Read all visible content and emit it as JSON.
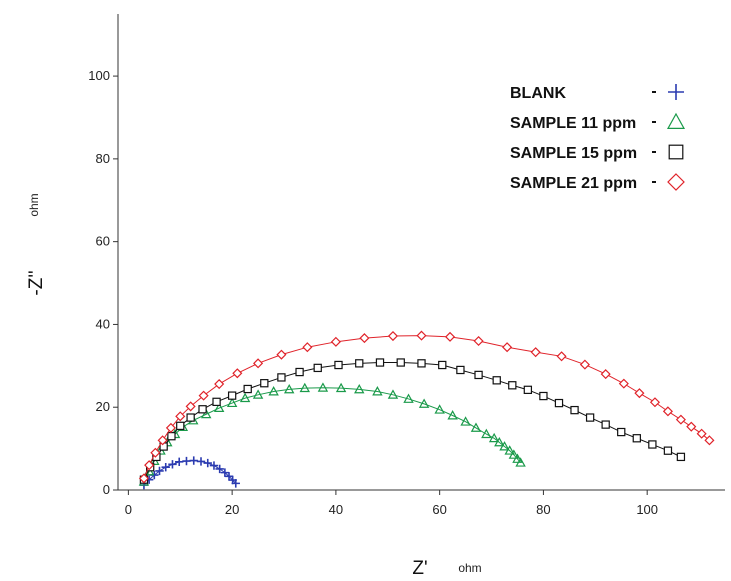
{
  "chart_data": {
    "type": "scatter",
    "title": "",
    "xlabel": "Z'",
    "xunit": "ohm",
    "ylabel": "-Z''",
    "yunit": "ohm",
    "xlim": [
      -2,
      115
    ],
    "ylim": [
      0,
      115
    ],
    "xticks": [
      0,
      20,
      40,
      60,
      80,
      100
    ],
    "yticks": [
      0,
      20,
      40,
      60,
      80,
      100
    ],
    "grid": false,
    "legend_position": "top-right",
    "series": [
      {
        "name": "BLANK",
        "marker": "plus",
        "color": "#2b3bb0",
        "x": [
          3.0,
          4.0,
          5.0,
          6.0,
          7.2,
          8.5,
          9.8,
          11.2,
          12.6,
          14.0,
          15.3,
          16.5,
          17.6,
          18.6,
          19.4,
          20.1,
          20.7
        ],
        "y": [
          1.2,
          2.5,
          3.6,
          4.6,
          5.5,
          6.2,
          6.8,
          7.0,
          7.1,
          6.9,
          6.5,
          5.9,
          5.1,
          4.2,
          3.3,
          2.4,
          1.6
        ]
      },
      {
        "name": "SAMPLE  11 ppm",
        "marker": "triangle",
        "color": "#1a9a4a",
        "x": [
          3.0,
          4.0,
          5.0,
          6.2,
          7.5,
          9.0,
          10.5,
          12.5,
          15.0,
          17.5,
          20.0,
          22.5,
          25.0,
          28.0,
          31.0,
          34.0,
          37.5,
          41.0,
          44.5,
          48.0,
          51.0,
          54.0,
          57.0,
          60.0,
          62.5,
          65.0,
          67.0,
          69.0,
          70.5,
          71.5,
          72.5,
          73.5,
          74.3,
          75.0,
          75.6
        ],
        "y": [
          2.0,
          4.5,
          7.0,
          9.5,
          11.5,
          13.5,
          15.2,
          16.8,
          18.3,
          19.8,
          21.0,
          22.2,
          23.0,
          23.8,
          24.3,
          24.6,
          24.7,
          24.6,
          24.3,
          23.8,
          23.0,
          22.0,
          20.8,
          19.4,
          18.0,
          16.5,
          15.0,
          13.5,
          12.5,
          11.5,
          10.5,
          9.5,
          8.5,
          7.5,
          6.6
        ]
      },
      {
        "name": "SAMPLE  15 ppm",
        "marker": "square",
        "color": "#111111",
        "x": [
          3.0,
          4.2,
          5.4,
          6.8,
          8.3,
          10.0,
          12.0,
          14.3,
          17.0,
          20.0,
          23.0,
          26.2,
          29.5,
          33.0,
          36.5,
          40.5,
          44.5,
          48.5,
          52.5,
          56.5,
          60.5,
          64.0,
          67.5,
          71.0,
          74.0,
          77.0,
          80.0,
          83.0,
          86.0,
          89.0,
          92.0,
          95.0,
          98.0,
          101.0,
          104.0,
          106.5
        ],
        "y": [
          2.5,
          5.5,
          8.0,
          10.5,
          13.0,
          15.5,
          17.5,
          19.5,
          21.3,
          22.8,
          24.4,
          25.8,
          27.2,
          28.5,
          29.5,
          30.2,
          30.6,
          30.8,
          30.8,
          30.6,
          30.2,
          29.0,
          27.8,
          26.5,
          25.3,
          24.2,
          22.7,
          21.0,
          19.3,
          17.5,
          15.8,
          14.0,
          12.5,
          11.0,
          9.5,
          8.0
        ]
      },
      {
        "name": "SAMPLE  21 ppm",
        "marker": "diamond",
        "color": "#e0232a",
        "x": [
          3.0,
          4.0,
          5.2,
          6.6,
          8.2,
          10.0,
          12.0,
          14.5,
          17.5,
          21.0,
          25.0,
          29.5,
          34.5,
          40.0,
          45.5,
          51.0,
          56.5,
          62.0,
          67.5,
          73.0,
          78.5,
          83.5,
          88.0,
          92.0,
          95.5,
          98.5,
          101.5,
          104.0,
          106.5,
          108.5,
          110.5,
          112.0
        ],
        "y": [
          2.8,
          6.0,
          9.0,
          12.0,
          15.0,
          17.8,
          20.2,
          22.8,
          25.6,
          28.2,
          30.6,
          32.7,
          34.5,
          35.8,
          36.7,
          37.2,
          37.3,
          37.0,
          36.0,
          34.5,
          33.3,
          32.3,
          30.3,
          28.0,
          25.7,
          23.4,
          21.2,
          19.0,
          17.0,
          15.3,
          13.6,
          12.0
        ]
      }
    ]
  }
}
